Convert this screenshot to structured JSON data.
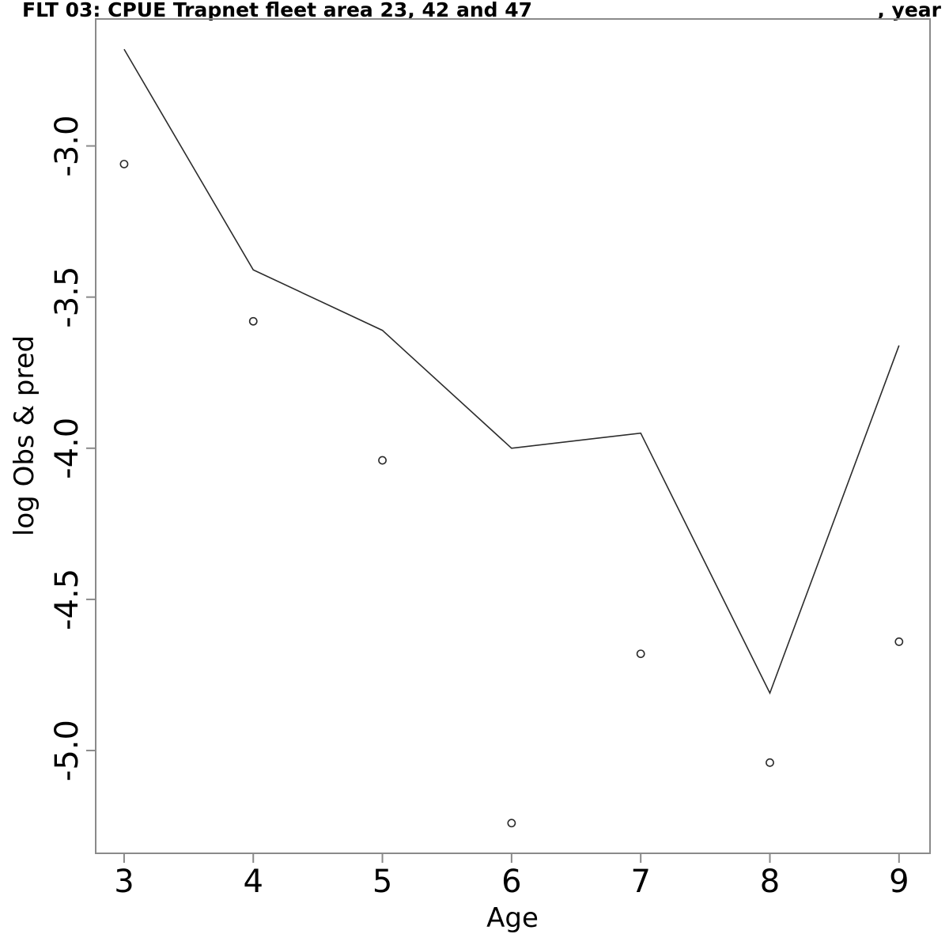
{
  "figure": {
    "title": "FLT 03: CPUE Trapnet fleet area 23, 42 and 47",
    "title_right": ", year"
  },
  "chart_data": {
    "type": "line",
    "title": "FLT 03: CPUE Trapnet fleet area 23, 42 and 47",
    "title_right": ", year",
    "xlabel": "Age",
    "ylabel": "log Obs & pred",
    "x": [
      3,
      4,
      5,
      6,
      7,
      8,
      9
    ],
    "series": [
      {
        "name": "predicted",
        "style": "line",
        "color": "#2b2b2b",
        "values": [
          -2.68,
          -3.41,
          -3.61,
          -4.0,
          -3.95,
          -4.81,
          -3.66
        ]
      },
      {
        "name": "observed",
        "style": "scatter",
        "marker": "open-circle",
        "color": "#2b2b2b",
        "values": [
          -3.06,
          -3.58,
          -4.04,
          -5.24,
          -4.68,
          -5.04,
          -4.64
        ]
      }
    ],
    "xticks": [
      3,
      4,
      5,
      6,
      7,
      8,
      9
    ],
    "xtick_labels": [
      "3",
      "4",
      "5",
      "6",
      "7",
      "8",
      "9"
    ],
    "ytick_values": [
      -3.0,
      -3.5,
      -4.0,
      -4.5,
      -5.0
    ],
    "ytick_labels": [
      "-3.0",
      "-3.5",
      "-4.0",
      "-4.5",
      "-5.0"
    ],
    "xlim": [
      2.78,
      9.24
    ],
    "ylim": [
      -5.34,
      -2.58
    ],
    "grid": false,
    "legend": null,
    "frame": true,
    "frame_color": "#8a8a8a",
    "text_color": "#000000",
    "background": "#ffffff"
  }
}
